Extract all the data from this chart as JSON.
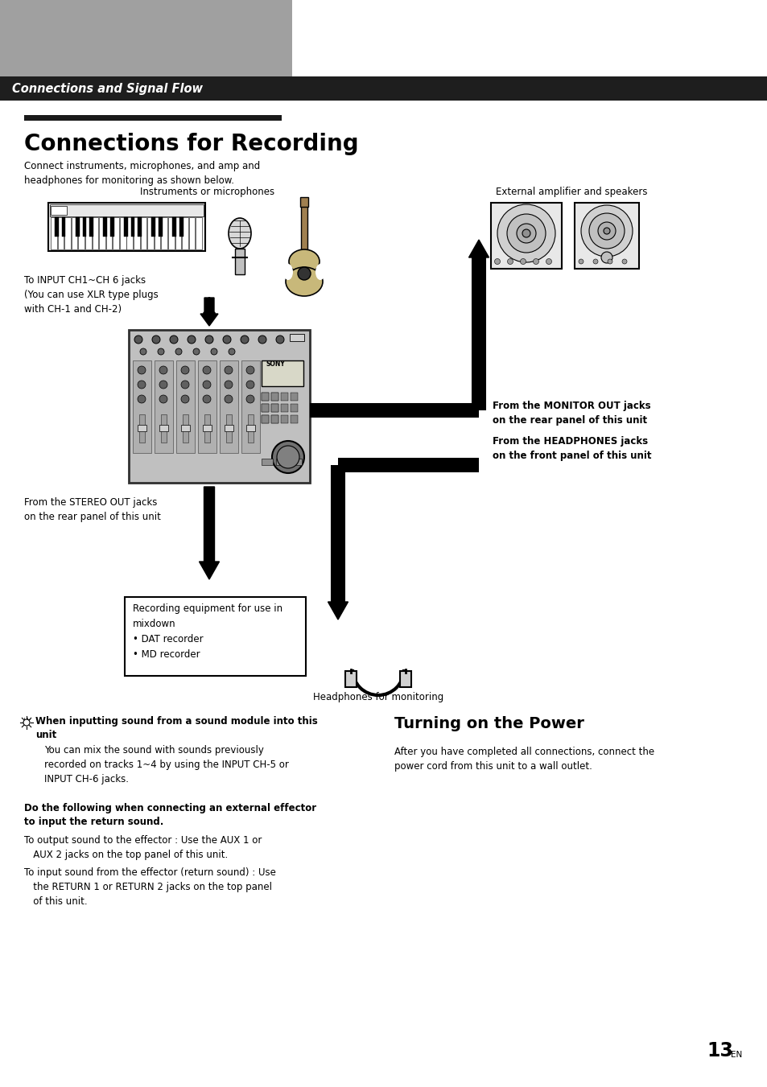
{
  "page_bg": "#ffffff",
  "header_bar_color": "#1e1e1e",
  "header_text": "Connections and Signal Flow",
  "header_text_color": "#ffffff",
  "gray_block_color": "#a0a0a0",
  "title_bar_color": "#1a1a1a",
  "title": "Connections for Recording",
  "subtitle": "Connect instruments, microphones, and amp and\nheadphones for monitoring as shown below.",
  "turning_on_title": "Turning on the Power",
  "turning_on_text": "After you have completed all connections, connect the\npower cord from this unit to a wall outlet.",
  "tip_bold": "When inputting sound from a sound module into this\nunit",
  "tip_text": "You can mix the sound with sounds previously\nrecorded on tracks 1~4 by using the INPUT CH-5 or\nINPUT CH-6 jacks.",
  "effector_bold": "Do the following when connecting an external effector\nto input the return sound.",
  "effector_text1": "To output sound to the effector : Use the AUX 1 or\n   AUX 2 jacks on the top panel of this unit.",
  "effector_text2": "To input sound from the effector (return sound) : Use\n   the RETURN 1 or RETURN 2 jacks on the top panel\n   of this unit.",
  "page_number": "13",
  "page_number_sup": "EN",
  "label_instruments": "Instruments or microphones",
  "label_external": "External amplifier and speakers",
  "label_input": "To INPUT CH1~CH 6 jacks\n(You can use XLR type plugs\nwith CH-1 and CH-2)",
  "label_monitor": "From the MONITOR OUT jacks\non the rear panel of this unit",
  "label_headphones_jack": "From the HEADPHONES jacks\non the front panel of this unit",
  "label_stereo": "From the STEREO OUT jacks\non the rear panel of this unit",
  "label_recording": "Recording equipment for use in\nmixdown\n• DAT recorder\n• MD recorder",
  "label_headphones": "Headphones for monitoring"
}
